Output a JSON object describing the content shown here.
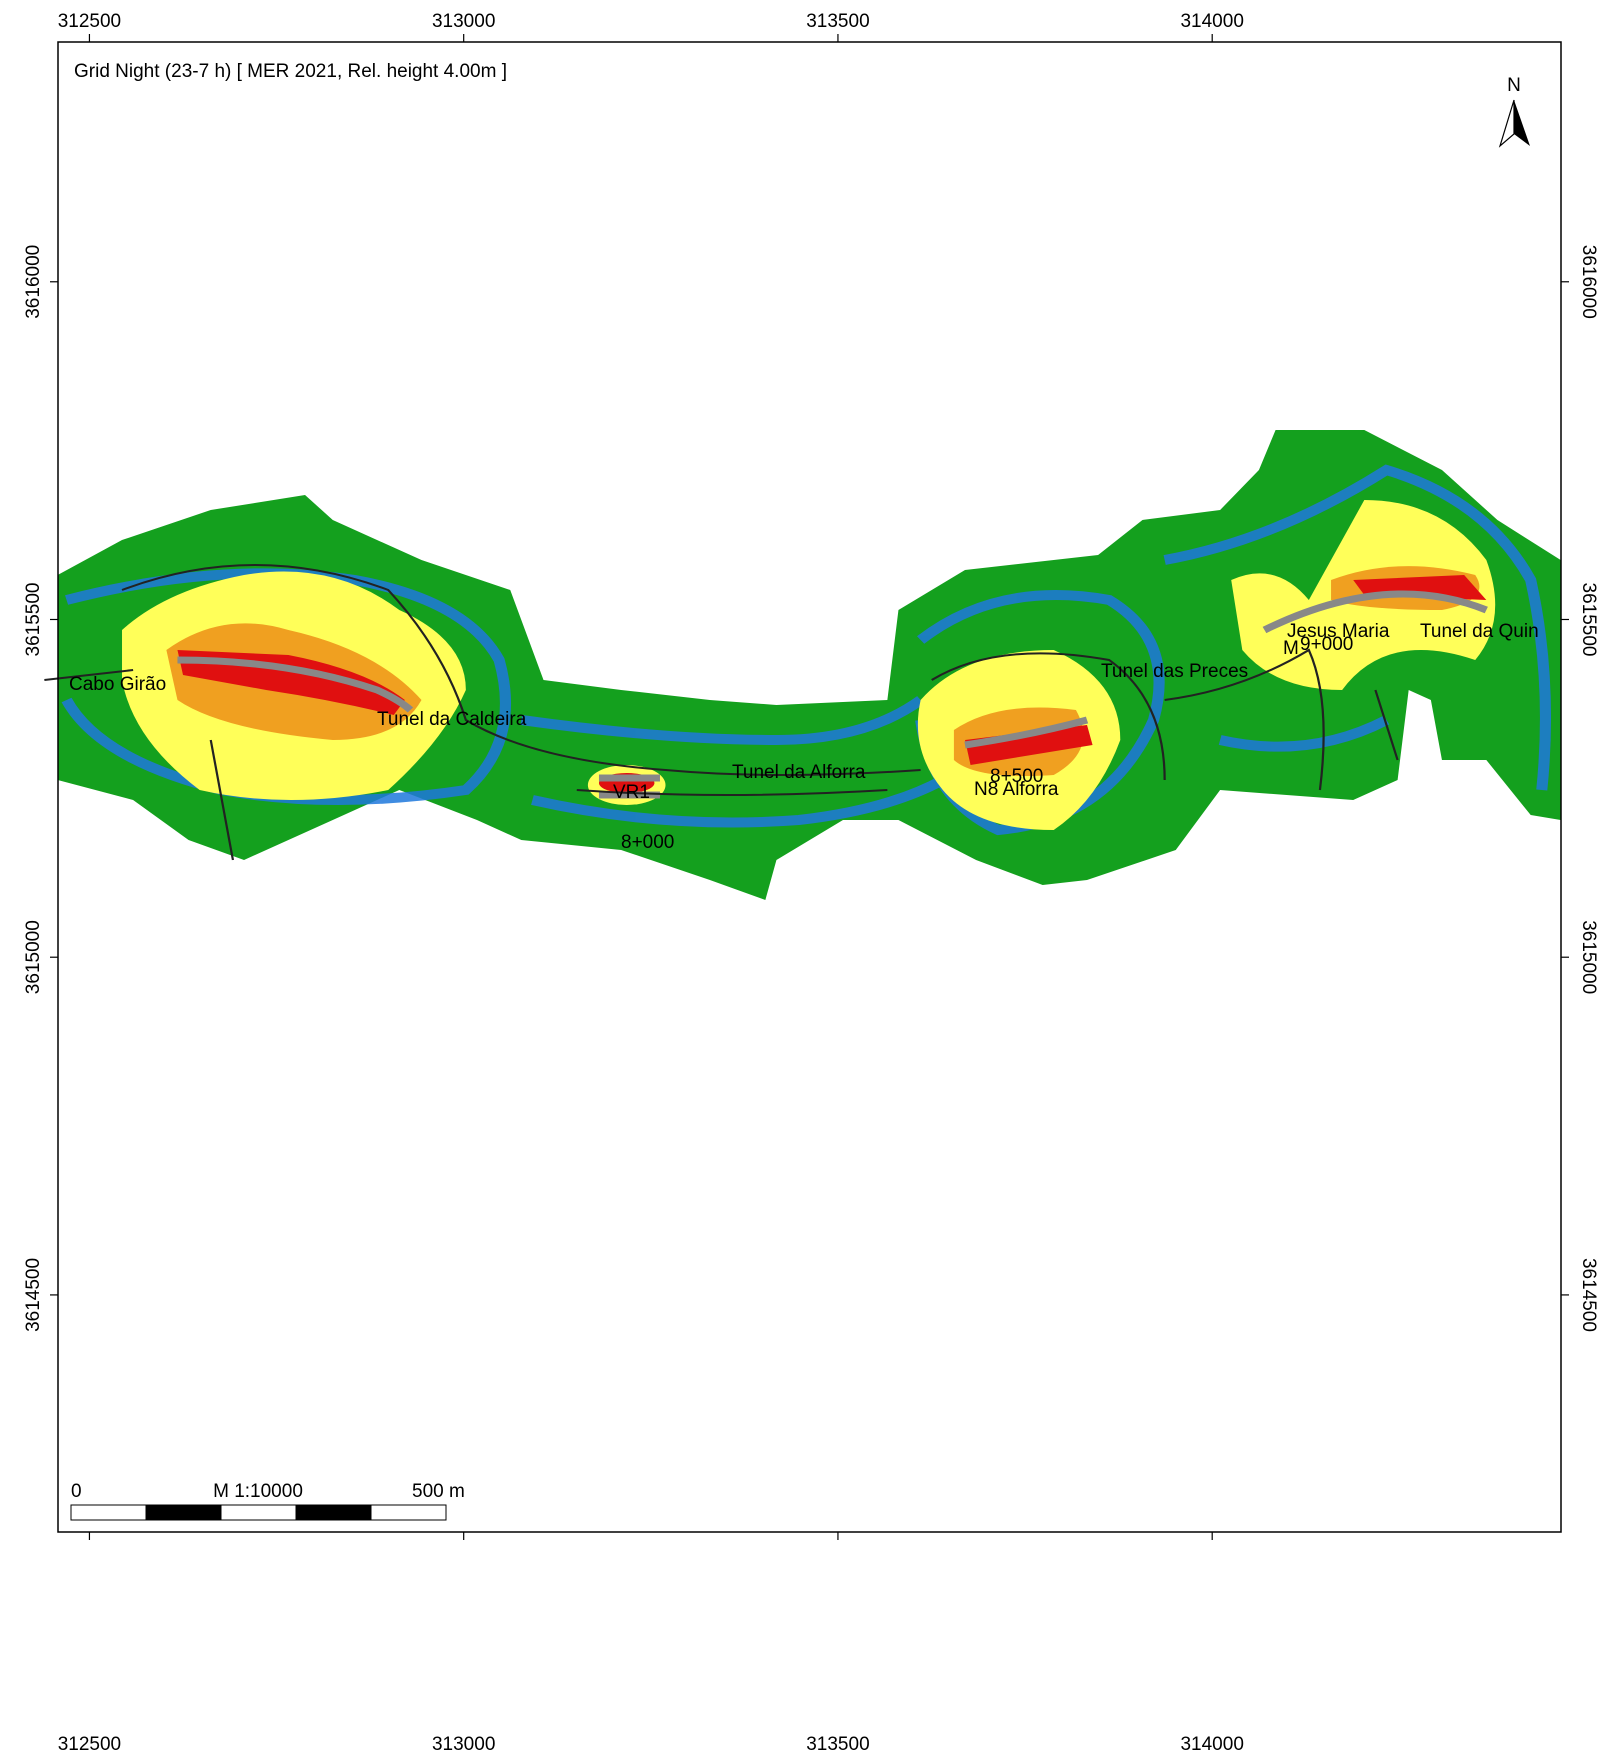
{
  "map": {
    "title": "Grid Night (23-7 h)  [ MER 2021, Rel. height  4.00m ]",
    "xlim": [
      312458,
      314466
    ],
    "ylim": [
      3614149,
      3616355
    ],
    "xticks": [
      312500,
      313000,
      313500,
      314000
    ],
    "yticks": [
      3614500,
      3615000,
      3615500,
      3616000
    ],
    "north": "N",
    "scale_bar": {
      "start": "0",
      "scale": "M 1:10000",
      "end": "500 m"
    },
    "places": [
      "Cabo Girão",
      "Tunel da Caldeira",
      "VR1",
      "8+000",
      "Tunel da Alforra",
      "8+500",
      "N8 Alforra",
      "Tunel das Preces",
      "Jesus Maria",
      "Tunel da Quin",
      "M",
      "9+000"
    ]
  }
}
